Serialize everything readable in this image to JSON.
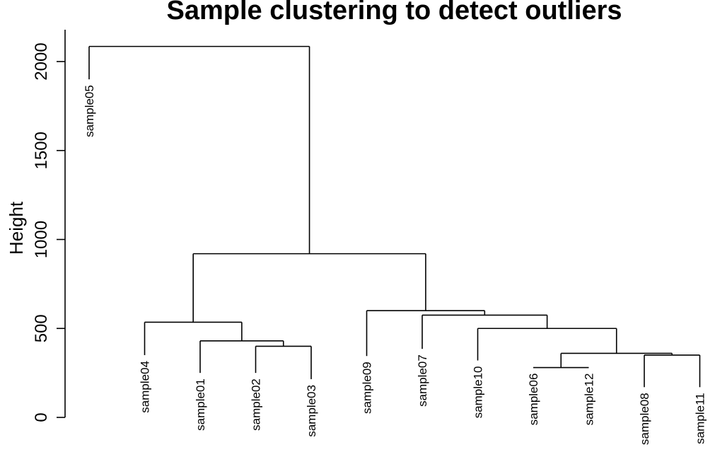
{
  "chart_data": {
    "type": "dendrogram",
    "title": "Sample clustering to detect outliers",
    "xlabel": "",
    "ylabel": "Height",
    "ylim": [
      0,
      2200
    ],
    "yticks": [
      0,
      500,
      1000,
      1500,
      2000
    ],
    "leaves": [
      "sample05",
      "sample04",
      "sample01",
      "sample02",
      "sample03",
      "sample09",
      "sample07",
      "sample10",
      "sample06",
      "sample12",
      "sample08",
      "sample11"
    ],
    "leaf_heights": [
      1900,
      350,
      250,
      250,
      215,
      345,
      385,
      320,
      280,
      280,
      170,
      170
    ],
    "merges": [
      {
        "left": "sample08",
        "right": "sample11",
        "height": 350
      },
      {
        "left": "sample06",
        "right": "sample12",
        "height": 280
      },
      {
        "left": "sample02",
        "right": "sample03",
        "height": 400
      },
      {
        "left": 1,
        "right": 0,
        "height": 360
      },
      {
        "left": "sample01",
        "right": 2,
        "height": 430
      },
      {
        "left": "sample10",
        "right": 3,
        "height": 500
      },
      {
        "left": "sample04",
        "right": 4,
        "height": 535
      },
      {
        "left": "sample07",
        "right": 5,
        "height": 575
      },
      {
        "left": "sample09",
        "right": 7,
        "height": 600
      },
      {
        "left": 6,
        "right": 8,
        "height": 920
      },
      {
        "left": "sample05",
        "right": 9,
        "height": 2085
      }
    ]
  }
}
